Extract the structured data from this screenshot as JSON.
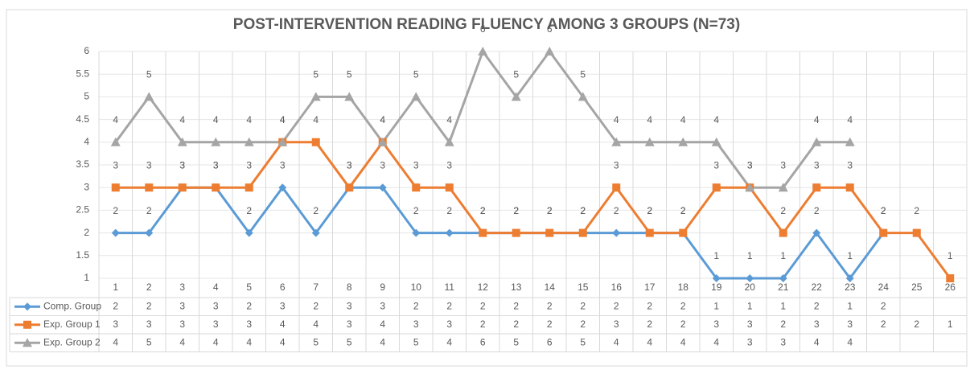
{
  "chart_data": {
    "type": "line",
    "title": "POST-INTERVENTION READING FLUENCY AMONG 3 GROUPS (N=73)",
    "categories": [
      "1",
      "2",
      "3",
      "4",
      "5",
      "6",
      "7",
      "8",
      "9",
      "10",
      "11",
      "12",
      "13",
      "14",
      "15",
      "16",
      "17",
      "18",
      "19",
      "20",
      "21",
      "22",
      "23",
      "24",
      "25",
      "26"
    ],
    "series": [
      {
        "name": "Comp. Group",
        "color": "#5b9bd5",
        "marker": "diamond",
        "values": [
          2,
          2,
          3,
          3,
          2,
          3,
          2,
          3,
          3,
          2,
          2,
          2,
          2,
          2,
          2,
          2,
          2,
          2,
          1,
          1,
          1,
          2,
          1,
          2,
          null,
          null
        ]
      },
      {
        "name": "Exp. Group 1",
        "color": "#ed7d31",
        "marker": "square",
        "values": [
          3,
          3,
          3,
          3,
          3,
          4,
          4,
          3,
          4,
          3,
          3,
          2,
          2,
          2,
          2,
          3,
          2,
          2,
          3,
          3,
          2,
          3,
          3,
          2,
          2,
          1
        ]
      },
      {
        "name": "Exp. Group 2",
        "color": "#a5a5a5",
        "marker": "triangle",
        "values": [
          4,
          5,
          4,
          4,
          4,
          4,
          5,
          5,
          4,
          5,
          4,
          6,
          5,
          6,
          5,
          4,
          4,
          4,
          4,
          3,
          3,
          4,
          4,
          null,
          null,
          null
        ]
      }
    ],
    "ylim": [
      1,
      6
    ],
    "yticks": [
      1,
      1.5,
      2,
      2.5,
      3,
      3.5,
      4,
      4.5,
      5,
      5.5,
      6
    ],
    "grid": true,
    "data_table": true
  }
}
